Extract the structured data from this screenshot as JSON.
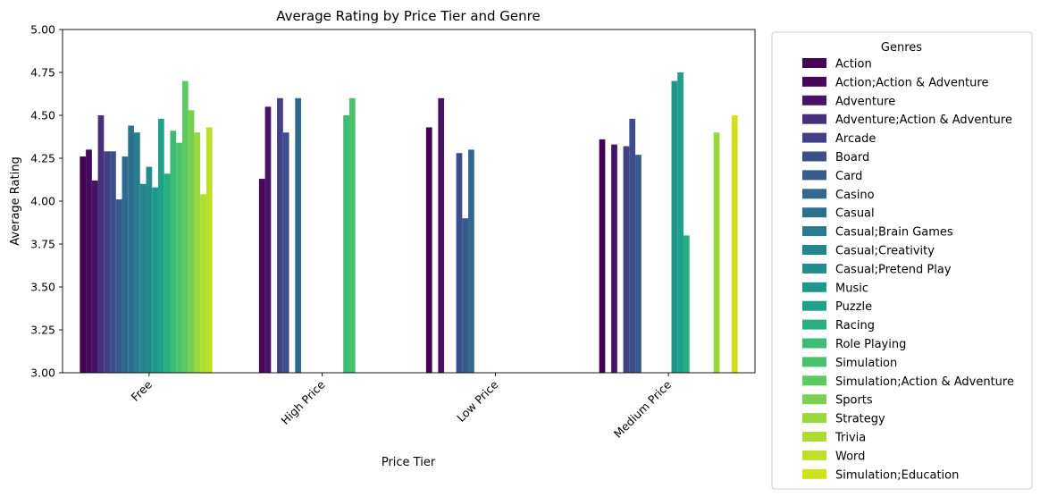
{
  "chart_data": {
    "type": "bar",
    "title": "Average Rating by Price Tier and Genre",
    "xlabel": "Price Tier",
    "ylabel": "Average Rating",
    "ylim": [
      3.0,
      5.0
    ],
    "yticks": [
      "3.00",
      "3.25",
      "3.50",
      "3.75",
      "4.00",
      "4.25",
      "4.50",
      "4.75",
      "5.00"
    ],
    "categories": [
      "Free",
      "High Price",
      "Low Price",
      "Medium Price"
    ],
    "legend_title": "Genres",
    "legend_position": "outside-right",
    "grid": false,
    "series": [
      {
        "name": "Action",
        "color": "#440154",
        "values": [
          4.26,
          null,
          4.43,
          4.36
        ]
      },
      {
        "name": "Action;Action & Adventure",
        "color": "#46085c",
        "values": [
          4.3,
          4.13,
          null,
          null
        ]
      },
      {
        "name": "Adventure",
        "color": "#471365",
        "values": [
          4.12,
          4.55,
          4.6,
          4.33
        ]
      },
      {
        "name": "Adventure;Action & Adventure",
        "color": "#46307e",
        "values": [
          4.5,
          null,
          null,
          null
        ]
      },
      {
        "name": "Arcade",
        "color": "#424086",
        "values": [
          4.29,
          4.6,
          null,
          4.32
        ]
      },
      {
        "name": "Board",
        "color": "#3c4f8a",
        "values": [
          4.29,
          4.4,
          4.28,
          4.48
        ]
      },
      {
        "name": "Card",
        "color": "#365c8d",
        "values": [
          4.01,
          null,
          3.9,
          4.27
        ]
      },
      {
        "name": "Casino",
        "color": "#31688e",
        "values": [
          4.26,
          4.6,
          4.3,
          null
        ]
      },
      {
        "name": "Casual",
        "color": "#2c728e",
        "values": [
          4.44,
          null,
          null,
          null
        ]
      },
      {
        "name": "Casual;Brain Games",
        "color": "#297b8e",
        "values": [
          4.4,
          null,
          null,
          null
        ]
      },
      {
        "name": "Casual;Creativity",
        "color": "#25848e",
        "values": [
          4.1,
          null,
          null,
          null
        ]
      },
      {
        "name": "Casual;Pretend Play",
        "color": "#228d8d",
        "values": [
          4.2,
          null,
          null,
          null
        ]
      },
      {
        "name": "Music",
        "color": "#1f968b",
        "values": [
          4.08,
          null,
          null,
          4.7
        ]
      },
      {
        "name": "Puzzle",
        "color": "#1fa088",
        "values": [
          4.48,
          null,
          null,
          4.75
        ]
      },
      {
        "name": "Racing",
        "color": "#28ae80",
        "values": [
          4.16,
          null,
          null,
          3.8
        ]
      },
      {
        "name": "Role Playing",
        "color": "#3bbb75",
        "values": [
          4.41,
          4.5,
          null,
          null
        ]
      },
      {
        "name": "Simulation",
        "color": "#4ac16d",
        "values": [
          4.34,
          4.6,
          null,
          null
        ]
      },
      {
        "name": "Simulation;Action & Adventure",
        "color": "#5ec962",
        "values": [
          4.7,
          null,
          null,
          null
        ]
      },
      {
        "name": "Sports",
        "color": "#7ad151",
        "values": [
          4.53,
          null,
          null,
          null
        ]
      },
      {
        "name": "Strategy",
        "color": "#98d83e",
        "values": [
          4.4,
          null,
          null,
          4.4
        ]
      },
      {
        "name": "Trivia",
        "color": "#addc30",
        "values": [
          4.04,
          null,
          null,
          null
        ]
      },
      {
        "name": "Word",
        "color": "#bddf26",
        "values": [
          4.43,
          null,
          null,
          null
        ]
      },
      {
        "name": "Simulation;Education",
        "color": "#cfe11c",
        "values": [
          null,
          null,
          null,
          4.5
        ]
      }
    ]
  }
}
